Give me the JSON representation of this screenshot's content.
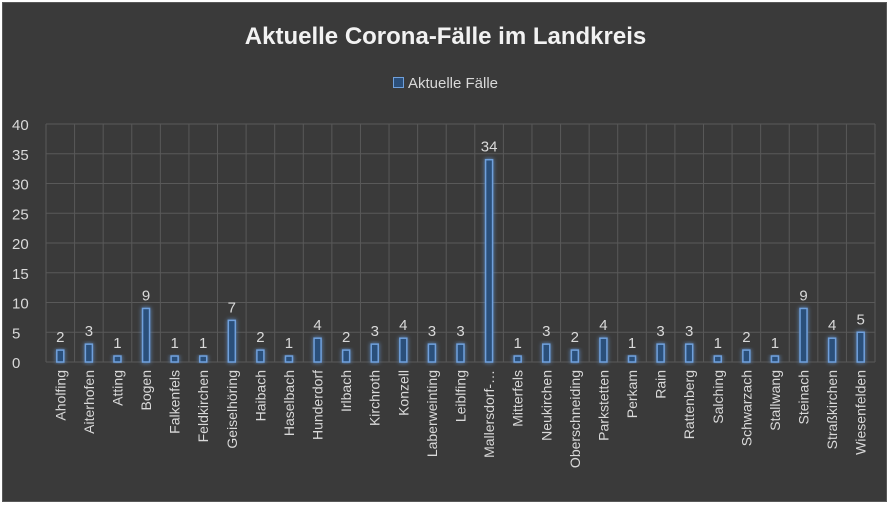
{
  "chart_data": {
    "type": "bar",
    "title": "Aktuelle Corona-Fälle im Landkreis",
    "legend": {
      "position": "top",
      "entries": [
        "Aktuelle Fälle"
      ]
    },
    "series": [
      {
        "name": "Aktuelle Fälle",
        "values": [
          2,
          3,
          1,
          9,
          1,
          1,
          7,
          2,
          1,
          4,
          2,
          3,
          4,
          3,
          3,
          34,
          1,
          3,
          2,
          4,
          1,
          3,
          3,
          1,
          2,
          1,
          9,
          4,
          5
        ],
        "data_labels": [
          "2",
          "3",
          "1",
          "9",
          "1",
          "1",
          "7",
          "2",
          "1",
          "4",
          "2",
          "3",
          "4",
          "3",
          "3",
          "34",
          "1",
          "3",
          "2",
          "4",
          "1",
          "3",
          "3",
          "1",
          "2",
          "1",
          "9",
          "4",
          "5"
        ]
      }
    ],
    "categories": [
      "Aholfing",
      "Aiterhofen",
      "Atting",
      "Bogen",
      "Falkenfels",
      "Feldkirchen",
      "Geiselhöring",
      "Haibach",
      "Haselbach",
      "Hunderdorf",
      "Irlbach",
      "Kirchroth",
      "Konzell",
      "Laberweinting",
      "Leiblfing",
      "Mallersdorf-…",
      "Mitterfels",
      "Neukirchen",
      "Oberschneiding",
      "Parkstetten",
      "Perkam",
      "Rain",
      "Rattenberg",
      "Salching",
      "Schwarzach",
      "Stallwang",
      "Steinach",
      "Straßkirchen",
      "Wiesenfelden"
    ],
    "y_ticks": [
      "0",
      "5",
      "10",
      "15",
      "20",
      "25",
      "30",
      "35",
      "40"
    ],
    "ylim": [
      0,
      40
    ],
    "grid": "horizontal and vertical",
    "xlabel": "",
    "ylabel": "",
    "colors": {
      "background": "#3a3a3a",
      "bar_fill": "#2b4f7a",
      "bar_stroke": "#6fa0dc",
      "bar_glow": "#5b9bd5",
      "grid": "#595959",
      "text": "#d9d9d9",
      "title": "#f2f2f2"
    }
  }
}
